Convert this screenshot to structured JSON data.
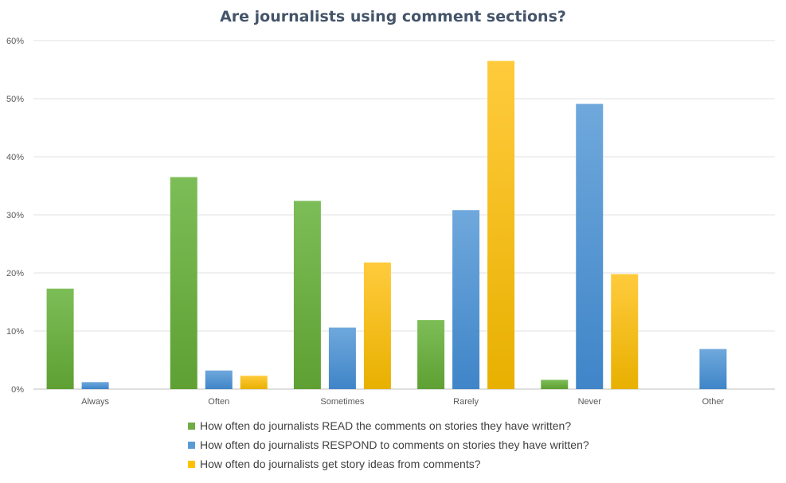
{
  "chart_data": {
    "type": "bar",
    "title": "Are journalists using comment sections?",
    "categories": [
      "Always",
      "Often",
      "Sometimes",
      "Rarely",
      "Never",
      "Other"
    ],
    "ylim": [
      0,
      60
    ],
    "y_ticks": [
      0,
      10,
      20,
      30,
      40,
      50,
      60
    ],
    "y_tick_labels": [
      "0%",
      "10%",
      "20%",
      "30%",
      "40%",
      "50%",
      "60%"
    ],
    "grid": true,
    "legend_position": "bottom",
    "series": [
      {
        "name": "How often do journalists READ the comments on stories they have written?",
        "color": "#70ad47",
        "values": [
          17.3,
          36.5,
          32.4,
          11.9,
          1.6,
          null
        ]
      },
      {
        "name": "How often do journalists RESPOND to comments on stories they have written?",
        "color": "#5b9bd5",
        "values": [
          1.2,
          3.2,
          10.6,
          30.8,
          49.1,
          6.9
        ]
      },
      {
        "name": "How often do journalists get story ideas from comments?",
        "color": "#ffc000",
        "values": [
          null,
          2.3,
          21.8,
          56.5,
          19.8,
          null
        ]
      }
    ]
  }
}
